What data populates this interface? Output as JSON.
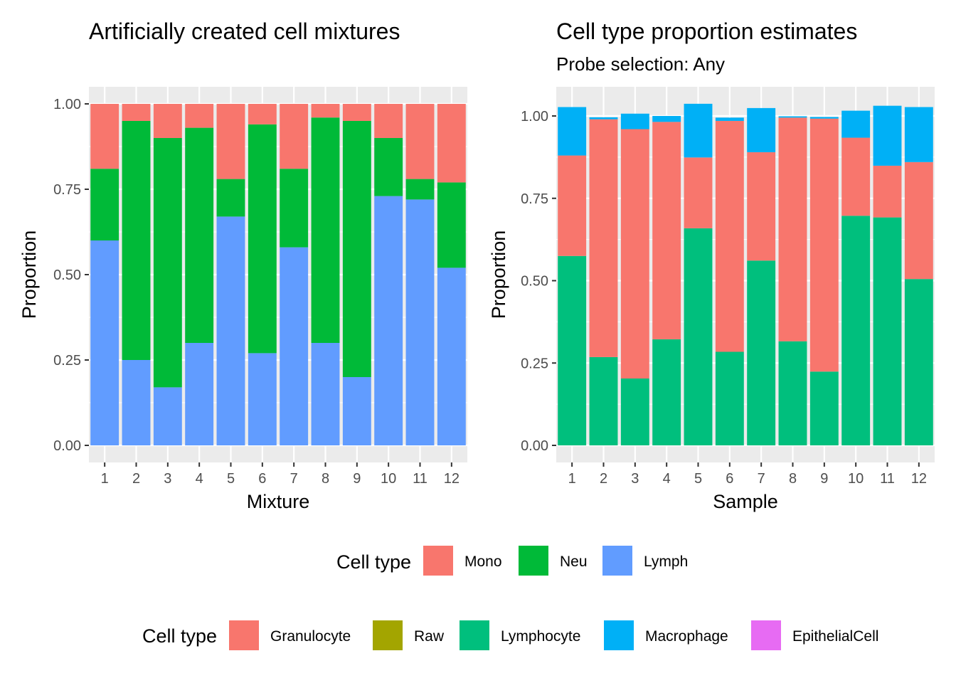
{
  "chart_data": [
    {
      "type": "bar",
      "stacked": true,
      "title": "Artificially created cell mixtures",
      "subtitle": "",
      "xlabel": "Mixture",
      "ylabel": "Proportion",
      "ylim": [
        0,
        1.05
      ],
      "yticks": [
        "0.00",
        "0.25",
        "0.50",
        "0.75",
        "1.00"
      ],
      "categories": [
        "1",
        "2",
        "3",
        "4",
        "5",
        "6",
        "7",
        "8",
        "9",
        "10",
        "11",
        "12"
      ],
      "grid": true,
      "series": [
        {
          "name": "Lymph",
          "color": "#619CFF",
          "values": [
            0.6,
            0.25,
            0.17,
            0.3,
            0.67,
            0.27,
            0.58,
            0.3,
            0.2,
            0.73,
            0.72,
            0.52
          ]
        },
        {
          "name": "Neu",
          "color": "#00BA38",
          "values": [
            0.21,
            0.7,
            0.73,
            0.63,
            0.11,
            0.67,
            0.23,
            0.66,
            0.75,
            0.17,
            0.06,
            0.25
          ]
        },
        {
          "name": "Mono",
          "color": "#F8766D",
          "values": [
            0.19,
            0.05,
            0.1,
            0.07,
            0.22,
            0.06,
            0.19,
            0.04,
            0.05,
            0.1,
            0.22,
            0.23
          ]
        }
      ]
    },
    {
      "type": "bar",
      "stacked": true,
      "title": "Cell type proportion estimates",
      "subtitle": "Probe selection: Any",
      "xlabel": "Sample",
      "ylabel": "Proportion",
      "ylim": [
        0,
        1.08
      ],
      "yticks": [
        "0.00",
        "0.25",
        "0.50",
        "0.75",
        "1.00"
      ],
      "categories": [
        "1",
        "2",
        "3",
        "4",
        "5",
        "6",
        "7",
        "8",
        "9",
        "10",
        "11",
        "12"
      ],
      "grid": true,
      "series": [
        {
          "name": "Lymphocyte",
          "color": "#00BF7D",
          "values": [
            0.575,
            0.268,
            0.203,
            0.322,
            0.659,
            0.284,
            0.561,
            0.316,
            0.224,
            0.697,
            0.692,
            0.505
          ]
        },
        {
          "name": "Granulocyte",
          "color": "#F8766D",
          "values": [
            0.305,
            0.722,
            0.757,
            0.66,
            0.215,
            0.701,
            0.329,
            0.679,
            0.768,
            0.237,
            0.157,
            0.355
          ]
        },
        {
          "name": "Macrophage",
          "color": "#00B0F6",
          "values": [
            0.147,
            0.006,
            0.047,
            0.018,
            0.163,
            0.01,
            0.134,
            0.004,
            0.005,
            0.082,
            0.182,
            0.167
          ]
        }
      ]
    }
  ],
  "legends": [
    {
      "title": "Cell type",
      "entries": [
        {
          "label": "Mono",
          "color": "#F8766D"
        },
        {
          "label": "Neu",
          "color": "#00BA38"
        },
        {
          "label": "Lymph",
          "color": "#619CFF"
        }
      ]
    },
    {
      "title": "Cell type",
      "entries": [
        {
          "label": "Granulocyte",
          "color": "#F8766D"
        },
        {
          "label": "Raw",
          "color": "#A3A500"
        },
        {
          "label": "Lymphocyte",
          "color": "#00BF7D"
        },
        {
          "label": "Macrophage",
          "color": "#00B0F6"
        },
        {
          "label": "EpithelialCell",
          "color": "#E76BF3"
        }
      ]
    }
  ]
}
